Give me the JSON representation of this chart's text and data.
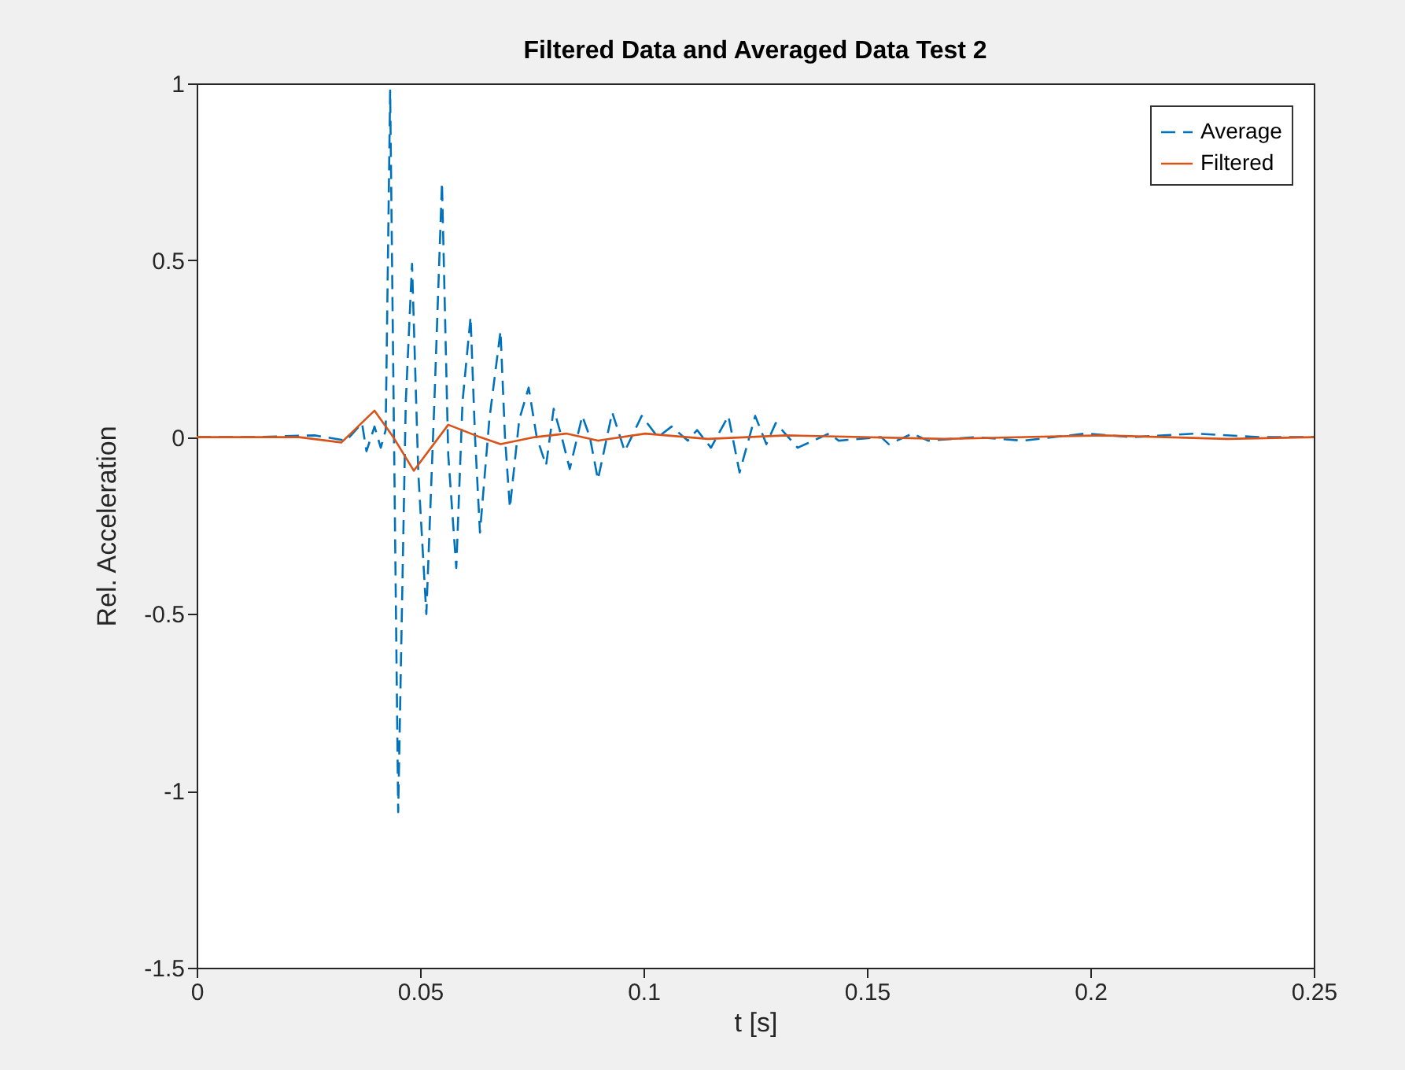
{
  "chart_data": {
    "type": "line",
    "title": "Filtered Data and Averaged Data Test 2",
    "xlabel": "t [s]",
    "ylabel": "Rel. Acceleration",
    "xlim": [
      0,
      0.25
    ],
    "xticks": [
      0,
      0.05,
      0.1,
      0.15,
      0.2,
      0.25
    ],
    "ylim": [
      -1.5,
      1
    ],
    "yticks": [
      -1.5,
      -1,
      -0.5,
      0,
      0.5,
      1
    ],
    "grid": false,
    "legend": "top right",
    "series": [
      {
        "name": "Average",
        "color": "#0072bd",
        "line_style": "dashed",
        "x": [
          0,
          0.0123,
          0.0264,
          0.0335,
          0.037,
          0.038,
          0.0398,
          0.0412,
          0.0423,
          0.0433,
          0.0451,
          0.0468,
          0.0482,
          0.0496,
          0.0514,
          0.0532,
          0.0549,
          0.0563,
          0.0581,
          0.0595,
          0.0613,
          0.0623,
          0.0634,
          0.0655,
          0.068,
          0.069,
          0.0701,
          0.0722,
          0.0743,
          0.0761,
          0.0782,
          0.0799,
          0.0817,
          0.0835,
          0.0863,
          0.088,
          0.0898,
          0.093,
          0.0958,
          0.0996,
          0.1032,
          0.1063,
          0.1099,
          0.112,
          0.1151,
          0.119,
          0.1215,
          0.125,
          0.1275,
          0.1296,
          0.1345,
          0.1415,
          0.1437,
          0.1532,
          0.1549,
          0.1602,
          0.1637,
          0.1743,
          0.1849,
          0.1989,
          0.2095,
          0.2236,
          0.2377,
          0.25
        ],
        "values": [
          0,
          0,
          0.005,
          -0.01,
          0.04,
          -0.04,
          0.03,
          -0.03,
          0.02,
          0.98,
          -1.06,
          0.1,
          0.49,
          -0.1,
          -0.5,
          0.1,
          0.72,
          -0.05,
          -0.37,
          0.1,
          0.34,
          0,
          -0.27,
          0.05,
          0.3,
          0,
          -0.2,
          0.05,
          0.14,
          0,
          -0.08,
          0.08,
          0,
          -0.09,
          0.06,
          0,
          -0.12,
          0.07,
          -0.04,
          0.06,
          0,
          0.03,
          -0.01,
          0.02,
          -0.03,
          0.06,
          -0.1,
          0.06,
          -0.02,
          0.04,
          -0.03,
          0.01,
          -0.01,
          0,
          -0.02,
          0.01,
          -0.01,
          0,
          -0.01,
          0.01,
          0,
          0.01,
          0,
          0
        ]
      },
      {
        "name": "Filtered",
        "color": "#d95319",
        "line_style": "solid",
        "x": [
          0,
          0.0229,
          0.0324,
          0.0398,
          0.044,
          0.0486,
          0.0563,
          0.0634,
          0.068,
          0.0757,
          0.0827,
          0.0898,
          0.1004,
          0.1144,
          0.132,
          0.1673,
          0.2025,
          0.2306,
          0.25
        ],
        "values": [
          0,
          0,
          -0.015,
          0.075,
          0,
          -0.095,
          0.035,
          0,
          -0.02,
          0,
          0.01,
          -0.01,
          0.01,
          -0.005,
          0.005,
          -0.005,
          0.005,
          -0.005,
          0
        ]
      }
    ]
  }
}
